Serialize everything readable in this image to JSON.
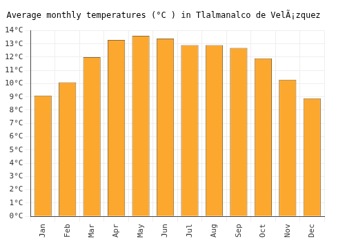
{
  "chart_data": {
    "type": "bar",
    "title": "Average monthly temperatures (°C ) in Tlalmanalco de VelÃ¡zquez",
    "categories": [
      "Jan",
      "Feb",
      "Mar",
      "Apr",
      "May",
      "Jun",
      "Jul",
      "Aug",
      "Sep",
      "Oct",
      "Nov",
      "Dec"
    ],
    "values": [
      9.1,
      10.1,
      12.0,
      13.3,
      13.6,
      13.4,
      12.9,
      12.9,
      12.7,
      11.9,
      10.3,
      8.9
    ],
    "color": "#fca82e",
    "ylim": [
      0,
      14
    ],
    "yticks": [
      {
        "value": 0,
        "label": "0°C"
      },
      {
        "value": 1,
        "label": "1°C"
      },
      {
        "value": 2,
        "label": "2°C"
      },
      {
        "value": 3,
        "label": "3°C"
      },
      {
        "value": 4,
        "label": "4°C"
      },
      {
        "value": 5,
        "label": "5°C"
      },
      {
        "value": 6,
        "label": "6°C"
      },
      {
        "value": 7,
        "label": "7°C"
      },
      {
        "value": 8,
        "label": "8°C"
      },
      {
        "value": 9,
        "label": "9°C"
      },
      {
        "value": 10,
        "label": "10°C"
      },
      {
        "value": 11,
        "label": "11°C"
      },
      {
        "value": 12,
        "label": "12°C"
      },
      {
        "value": 13,
        "label": "13°C"
      },
      {
        "value": 14,
        "label": "14°C"
      }
    ],
    "grid": true
  }
}
